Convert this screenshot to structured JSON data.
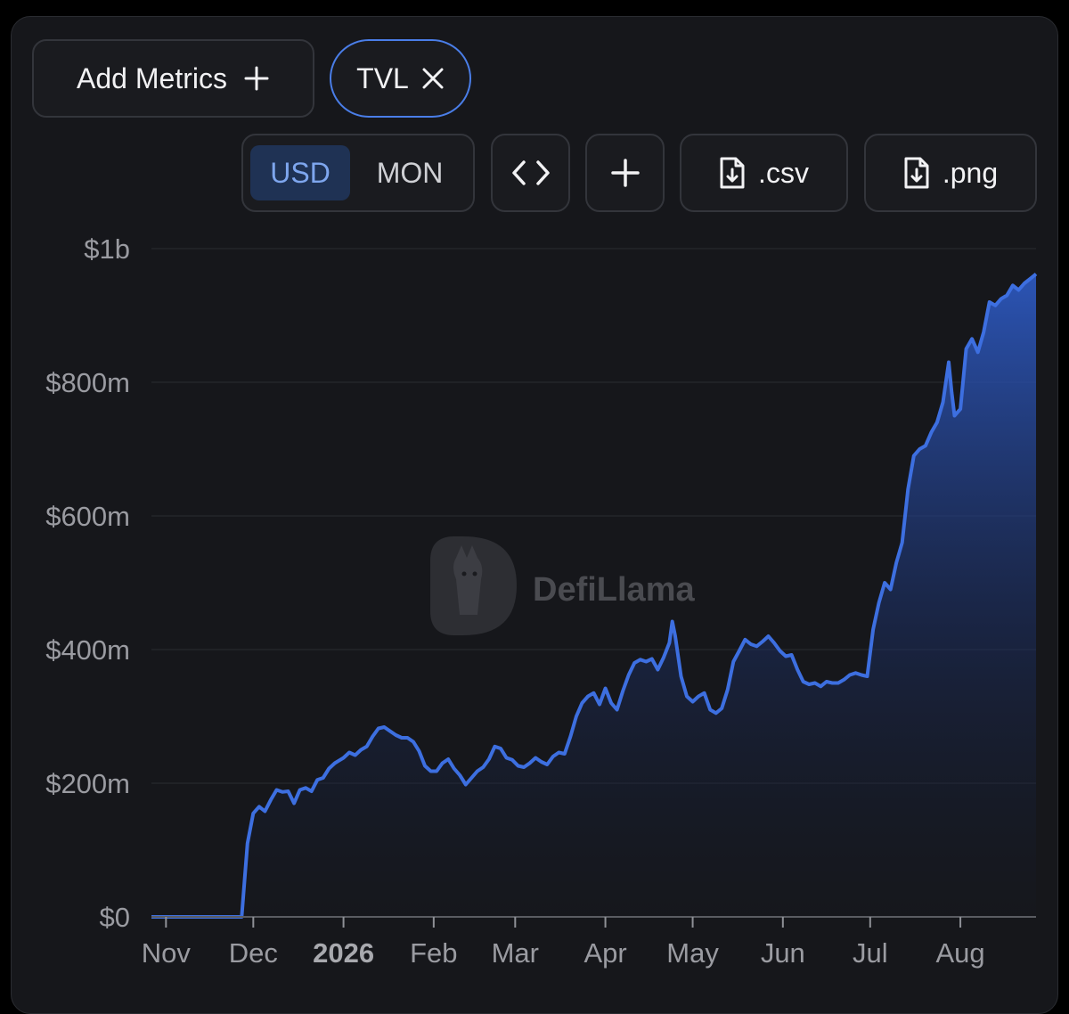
{
  "toolbar": {
    "add_metrics_label": "Add Metrics",
    "metric_chip_label": "TVL",
    "currency_options": [
      "USD",
      "MON"
    ],
    "currency_selected": "USD",
    "csv_label": ".csv",
    "png_label": ".png"
  },
  "watermark": "DefiLlama",
  "colors": {
    "accent": "#4a7ee8",
    "line": "#3d6fe0",
    "background": "#16171b"
  },
  "chart_data": {
    "type": "area",
    "series": [
      {
        "points": [
          [
            "2025-10-27",
            0
          ],
          [
            "2025-11-05",
            0
          ],
          [
            "2025-11-15",
            0
          ],
          [
            "2025-11-25",
            0
          ],
          [
            "2025-11-27",
            0
          ],
          [
            "2025-11-29",
            110
          ],
          [
            "2025-12-01",
            155
          ],
          [
            "2025-12-03",
            165
          ],
          [
            "2025-12-05",
            158
          ],
          [
            "2025-12-07",
            175
          ],
          [
            "2025-12-09",
            190
          ],
          [
            "2025-12-11",
            187
          ],
          [
            "2025-12-13",
            188
          ],
          [
            "2025-12-15",
            170
          ],
          [
            "2025-12-17",
            190
          ],
          [
            "2025-12-19",
            193
          ],
          [
            "2025-12-21",
            188
          ],
          [
            "2025-12-23",
            205
          ],
          [
            "2025-12-25",
            208
          ],
          [
            "2025-12-27",
            222
          ],
          [
            "2025-12-29",
            230
          ],
          [
            "2026-01-01",
            238
          ],
          [
            "2026-01-03",
            246
          ],
          [
            "2026-01-05",
            242
          ],
          [
            "2026-01-07",
            250
          ],
          [
            "2026-01-09",
            255
          ],
          [
            "2026-01-11",
            270
          ],
          [
            "2026-01-13",
            282
          ],
          [
            "2026-01-15",
            284
          ],
          [
            "2026-01-17",
            278
          ],
          [
            "2026-01-19",
            272
          ],
          [
            "2026-01-21",
            268
          ],
          [
            "2026-01-23",
            268
          ],
          [
            "2026-01-25",
            262
          ],
          [
            "2026-01-27",
            248
          ],
          [
            "2026-01-29",
            226
          ],
          [
            "2026-01-31",
            218
          ],
          [
            "2026-02-02",
            218
          ],
          [
            "2026-02-04",
            230
          ],
          [
            "2026-02-06",
            236
          ],
          [
            "2026-02-08",
            222
          ],
          [
            "2026-02-10",
            212
          ],
          [
            "2026-02-12",
            198
          ],
          [
            "2026-02-14",
            208
          ],
          [
            "2026-02-16",
            218
          ],
          [
            "2026-02-18",
            224
          ],
          [
            "2026-02-20",
            236
          ],
          [
            "2026-02-22",
            255
          ],
          [
            "2026-02-24",
            252
          ],
          [
            "2026-02-26",
            238
          ],
          [
            "2026-02-28",
            235
          ],
          [
            "2026-03-02",
            226
          ],
          [
            "2026-03-04",
            224
          ],
          [
            "2026-03-06",
            230
          ],
          [
            "2026-03-08",
            238
          ],
          [
            "2026-03-10",
            232
          ],
          [
            "2026-03-12",
            228
          ],
          [
            "2026-03-14",
            240
          ],
          [
            "2026-03-16",
            246
          ],
          [
            "2026-03-18",
            244
          ],
          [
            "2026-03-20",
            270
          ],
          [
            "2026-03-22",
            300
          ],
          [
            "2026-03-24",
            320
          ],
          [
            "2026-03-26",
            330
          ],
          [
            "2026-03-28",
            335
          ],
          [
            "2026-03-30",
            318
          ],
          [
            "2026-04-01",
            342
          ],
          [
            "2026-04-03",
            320
          ],
          [
            "2026-04-05",
            310
          ],
          [
            "2026-04-07",
            338
          ],
          [
            "2026-04-09",
            362
          ],
          [
            "2026-04-11",
            380
          ],
          [
            "2026-04-13",
            385
          ],
          [
            "2026-04-15",
            382
          ],
          [
            "2026-04-17",
            386
          ],
          [
            "2026-04-19",
            370
          ],
          [
            "2026-04-21",
            388
          ],
          [
            "2026-04-23",
            410
          ],
          [
            "2026-04-24",
            442
          ],
          [
            "2026-04-25",
            420
          ],
          [
            "2026-04-27",
            360
          ],
          [
            "2026-04-29",
            330
          ],
          [
            "2026-05-01",
            322
          ],
          [
            "2026-05-03",
            330
          ],
          [
            "2026-05-05",
            335
          ],
          [
            "2026-05-07",
            310
          ],
          [
            "2026-05-09",
            305
          ],
          [
            "2026-05-11",
            312
          ],
          [
            "2026-05-13",
            340
          ],
          [
            "2026-05-15",
            382
          ],
          [
            "2026-05-17",
            398
          ],
          [
            "2026-05-19",
            415
          ],
          [
            "2026-05-21",
            408
          ],
          [
            "2026-05-23",
            405
          ],
          [
            "2026-05-25",
            412
          ],
          [
            "2026-05-27",
            420
          ],
          [
            "2026-05-29",
            410
          ],
          [
            "2026-05-31",
            398
          ],
          [
            "2026-06-02",
            390
          ],
          [
            "2026-06-04",
            392
          ],
          [
            "2026-06-06",
            370
          ],
          [
            "2026-06-08",
            352
          ],
          [
            "2026-06-10",
            348
          ],
          [
            "2026-06-12",
            350
          ],
          [
            "2026-06-14",
            345
          ],
          [
            "2026-06-16",
            352
          ],
          [
            "2026-06-18",
            350
          ],
          [
            "2026-06-20",
            350
          ],
          [
            "2026-06-22",
            355
          ],
          [
            "2026-06-24",
            362
          ],
          [
            "2026-06-26",
            365
          ],
          [
            "2026-06-28",
            362
          ],
          [
            "2026-06-30",
            360
          ],
          [
            "2026-07-02",
            430
          ],
          [
            "2026-07-04",
            470
          ],
          [
            "2026-07-06",
            500
          ],
          [
            "2026-07-08",
            490
          ],
          [
            "2026-07-10",
            530
          ],
          [
            "2026-07-12",
            560
          ],
          [
            "2026-07-14",
            640
          ],
          [
            "2026-07-16",
            690
          ],
          [
            "2026-07-18",
            700
          ],
          [
            "2026-07-20",
            705
          ],
          [
            "2026-07-22",
            725
          ],
          [
            "2026-07-24",
            740
          ],
          [
            "2026-07-26",
            770
          ],
          [
            "2026-07-28",
            830
          ],
          [
            "2026-07-29",
            785
          ],
          [
            "2026-07-30",
            750
          ],
          [
            "2026-08-01",
            760
          ],
          [
            "2026-08-03",
            850
          ],
          [
            "2026-08-05",
            865
          ],
          [
            "2026-08-07",
            845
          ],
          [
            "2026-08-09",
            875
          ],
          [
            "2026-08-11",
            920
          ],
          [
            "2026-08-13",
            915
          ],
          [
            "2026-08-15",
            925
          ],
          [
            "2026-08-17",
            930
          ],
          [
            "2026-08-19",
            945
          ],
          [
            "2026-08-21",
            938
          ],
          [
            "2026-08-23",
            948
          ],
          [
            "2026-08-25",
            955
          ],
          [
            "2026-08-27",
            962
          ]
        ]
      }
    ],
    "y_ticks": [
      "$0",
      "$200m",
      "$400m",
      "$600m",
      "$800m",
      "$1b"
    ],
    "y_tick_values": [
      0,
      200,
      400,
      600,
      800,
      1000
    ],
    "y_unit": "$m",
    "ylim": [
      0,
      1000
    ],
    "x_ticks": [
      {
        "label": "Nov",
        "date": "2025-11-01"
      },
      {
        "label": "Dec",
        "date": "2025-12-01"
      },
      {
        "label": "2026",
        "date": "2026-01-01",
        "bold": true
      },
      {
        "label": "Feb",
        "date": "2026-02-01"
      },
      {
        "label": "Mar",
        "date": "2026-03-01"
      },
      {
        "label": "Apr",
        "date": "2026-04-01"
      },
      {
        "label": "May",
        "date": "2026-05-01"
      },
      {
        "label": "Jun",
        "date": "2026-06-01"
      },
      {
        "label": "Jul",
        "date": "2026-07-01"
      },
      {
        "label": "Aug",
        "date": "2026-08-01"
      }
    ],
    "xlim": [
      "2025-10-27",
      "2026-08-27"
    ],
    "grid": true
  }
}
